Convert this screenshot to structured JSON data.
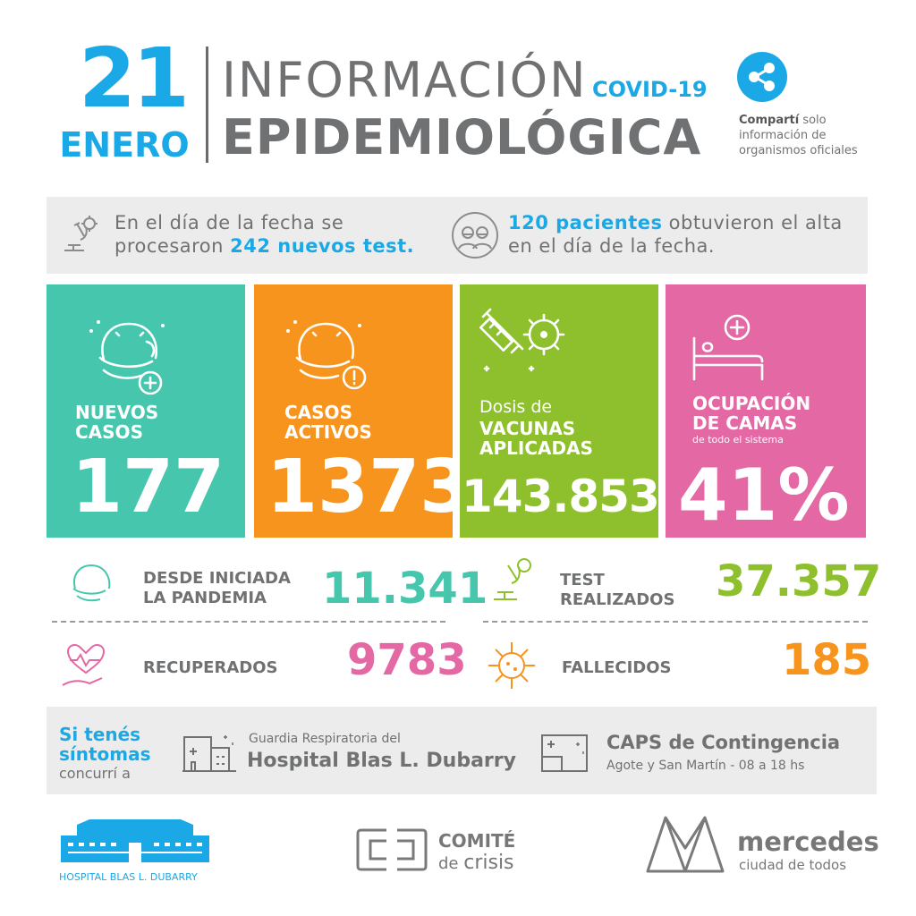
{
  "header": {
    "day": "21",
    "month": "ENERO",
    "title_line1": "INFORMACIÓN",
    "covid": "COVID-19",
    "title_line2": "EPIDEMIOLÓGICA",
    "share_bold": "Compartí",
    "share_rest1": " solo",
    "share_rest2": "información de",
    "share_rest3": "organismos oficiales"
  },
  "info_band": {
    "tests_line1": "En el día de la fecha se",
    "tests_pre": "procesaron ",
    "tests_highlight": "242 nuevos test.",
    "alta_highlight": "120 pacientes",
    "alta_rest": " obtuvieron el alta",
    "alta_line2": "en el día de la fecha."
  },
  "cards": [
    {
      "label1": "NUEVOS",
      "label2": "CASOS",
      "value": "177",
      "color": "#46c7ad"
    },
    {
      "label1": "CASOS",
      "label2": "ACTIVOS",
      "value": "1373",
      "color": "#f7941d"
    },
    {
      "label_small": "Dosis de",
      "label1": "VACUNAS",
      "label2": "APLICADAS",
      "value": "143.853",
      "color": "#8dc02c"
    },
    {
      "label1": "OCUPACIÓN",
      "label2": "DE CAMAS",
      "sub": "de todo el sistema",
      "value": "41%",
      "color": "#e468a4"
    }
  ],
  "stats": {
    "pandemia_label1": "DESDE INICIADA",
    "pandemia_label2": "LA PANDEMIA",
    "pandemia_value": "11.341",
    "tests_label1": "TEST",
    "tests_label2": "REALIZADOS",
    "tests_value": "37.357",
    "recuperados_label": "RECUPERADOS",
    "recuperados_value": "9783",
    "fallecidos_label": "FALLECIDOS",
    "fallecidos_value": "185"
  },
  "symptoms": {
    "line1": "Si tenés",
    "line2": "síntomas",
    "line3": "concurrí a",
    "hospital_small": "Guardia Respiratoria del",
    "hospital_name": "Hospital Blas L. Dubarry",
    "caps_name": "CAPS de Contingencia",
    "caps_detail": "Agote y San Martín - 08 a 18 hs"
  },
  "footer": {
    "hospital_logo_text": "HOSPITAL BLAS L. DUBARRY",
    "comite1": "COMITÉ",
    "comite2_pre": "de ",
    "comite2_word": "crisis",
    "mercedes": "mercedes",
    "mercedes_sub": "ciudad de todos"
  },
  "colors": {
    "blue": "#1aa9e6",
    "teal": "#46c7ad",
    "orange": "#f7941d",
    "green": "#8dc02c",
    "pink": "#e468a4",
    "gray_text": "#6f7173"
  }
}
